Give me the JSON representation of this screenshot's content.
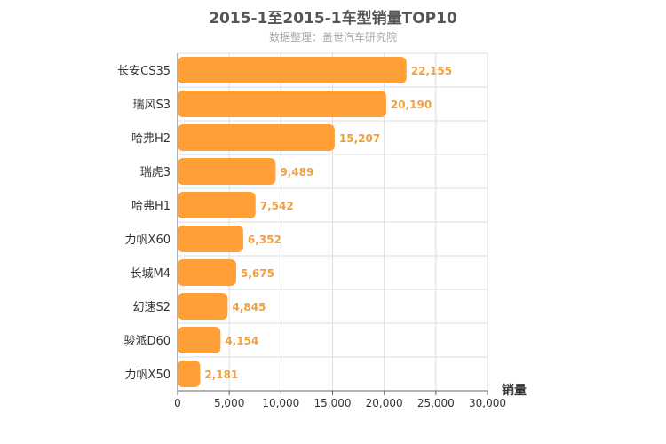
{
  "colors": {
    "bar": "#ff9f36",
    "value_label": "#f0a040",
    "grid": "#dddddd",
    "axis": "#666666",
    "text": "#333333"
  },
  "chart_data": {
    "type": "bar",
    "orientation": "horizontal",
    "title": "2015-1至2015-1车型销量TOP10",
    "subtitle": "数据整理：盖世汽车研究院",
    "xlabel": "销量",
    "ylabel": "",
    "xlim": [
      0,
      30000
    ],
    "x_ticks": [
      "0",
      "5,000",
      "10,000",
      "15,000",
      "20,000",
      "25,000",
      "30,000"
    ],
    "grid": true,
    "categories": [
      "长安CS35",
      "瑞风S3",
      "哈弗H2",
      "瑞虎3",
      "哈弗H1",
      "力帆X60",
      "长城M4",
      "幻速S2",
      "骏派D60",
      "力帆X50"
    ],
    "values": [
      22155,
      20190,
      15207,
      9489,
      7542,
      6352,
      5675,
      4845,
      4154,
      2181
    ],
    "value_labels": [
      "22,155",
      "20,190",
      "15,207",
      "9,489",
      "7,542",
      "6,352",
      "5,675",
      "4,845",
      "4,154",
      "2,181"
    ]
  }
}
